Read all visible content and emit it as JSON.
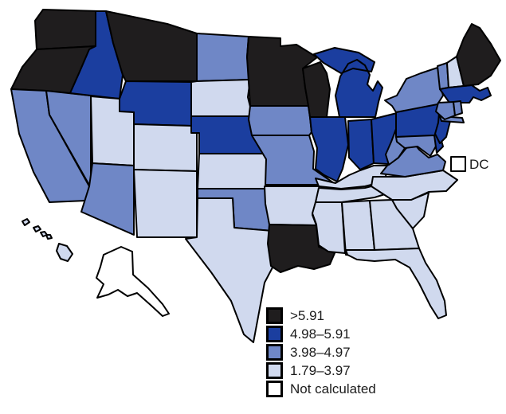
{
  "legend": {
    "categories": [
      {
        "label": ">5.91",
        "color": "#1f1d1e"
      },
      {
        "label": "4.98–5.91",
        "color": "#1b3e9f"
      },
      {
        "label": "3.98–4.97",
        "color": "#6f87c6"
      },
      {
        "label": "1.79–3.97",
        "color": "#d0d9ee"
      },
      {
        "label": "Not calculated",
        "color": "#ffffff"
      }
    ]
  },
  "map": {
    "stroke": "#000000",
    "background": "#ffffff",
    "dc_label": "DC",
    "states": [
      {
        "id": "WA",
        "category": 0
      },
      {
        "id": "OR",
        "category": 0
      },
      {
        "id": "CA",
        "category": 2
      },
      {
        "id": "NV",
        "category": 2
      },
      {
        "id": "ID",
        "category": 1
      },
      {
        "id": "MT",
        "category": 0
      },
      {
        "id": "WY",
        "category": 1
      },
      {
        "id": "UT",
        "category": 3
      },
      {
        "id": "CO",
        "category": 3
      },
      {
        "id": "AZ",
        "category": 2
      },
      {
        "id": "NM",
        "category": 3
      },
      {
        "id": "ND",
        "category": 2
      },
      {
        "id": "SD",
        "category": 3
      },
      {
        "id": "NE",
        "category": 1
      },
      {
        "id": "KS",
        "category": 3
      },
      {
        "id": "OK",
        "category": 2
      },
      {
        "id": "TX",
        "category": 3
      },
      {
        "id": "MN",
        "category": 0
      },
      {
        "id": "IA",
        "category": 2
      },
      {
        "id": "MO",
        "category": 2
      },
      {
        "id": "AR",
        "category": 3
      },
      {
        "id": "LA",
        "category": 0
      },
      {
        "id": "WI",
        "category": 0
      },
      {
        "id": "MI",
        "category": 1
      },
      {
        "id": "IL",
        "category": 1
      },
      {
        "id": "IN",
        "category": 1
      },
      {
        "id": "OH",
        "category": 1
      },
      {
        "id": "KY",
        "category": 3
      },
      {
        "id": "TN",
        "category": 3
      },
      {
        "id": "MS",
        "category": 3
      },
      {
        "id": "AL",
        "category": 3
      },
      {
        "id": "GA",
        "category": 3
      },
      {
        "id": "FL",
        "category": 3
      },
      {
        "id": "SC",
        "category": 3
      },
      {
        "id": "NC",
        "category": 3
      },
      {
        "id": "VA",
        "category": 2
      },
      {
        "id": "WV",
        "category": 2
      },
      {
        "id": "PA",
        "category": 1
      },
      {
        "id": "MD",
        "category": 2
      },
      {
        "id": "DE",
        "category": 1
      },
      {
        "id": "NJ",
        "category": 1
      },
      {
        "id": "NY",
        "category": 2
      },
      {
        "id": "VT",
        "category": 2
      },
      {
        "id": "NH",
        "category": 3
      },
      {
        "id": "MA",
        "category": 1
      },
      {
        "id": "CT",
        "category": 2
      },
      {
        "id": "RI",
        "category": 2
      },
      {
        "id": "ME",
        "category": 0
      },
      {
        "id": "AK",
        "category": 4
      },
      {
        "id": "HI",
        "category": 3
      },
      {
        "id": "DC",
        "category": 4
      }
    ]
  },
  "chart_data": {
    "type": "choropleth",
    "title": "",
    "bins": [
      ">5.91",
      "4.98–5.91",
      "3.98–4.97",
      "1.79–3.97",
      "Not calculated"
    ],
    "bin_colors": [
      "#1f1d1e",
      "#1b3e9f",
      "#6f87c6",
      "#d0d9ee",
      "#ffffff"
    ],
    "states_by_bin": {
      ">5.91": [
        "WA",
        "OR",
        "MT",
        "MN",
        "WI",
        "LA",
        "ME"
      ],
      "4.98–5.91": [
        "ID",
        "WY",
        "NE",
        "MI",
        "IL",
        "IN",
        "OH",
        "PA",
        "NJ",
        "DE",
        "MA"
      ],
      "3.98–4.97": [
        "CA",
        "NV",
        "AZ",
        "ND",
        "IA",
        "MO",
        "OK",
        "VA",
        "WV",
        "MD",
        "NY",
        "VT",
        "CT",
        "RI"
      ],
      "1.79–3.97": [
        "UT",
        "CO",
        "NM",
        "SD",
        "KS",
        "TX",
        "AR",
        "KY",
        "TN",
        "MS",
        "AL",
        "GA",
        "FL",
        "SC",
        "NC",
        "NH",
        "HI"
      ],
      "Not calculated": [
        "AK",
        "DC"
      ]
    },
    "legend_position": "bottom-right"
  }
}
